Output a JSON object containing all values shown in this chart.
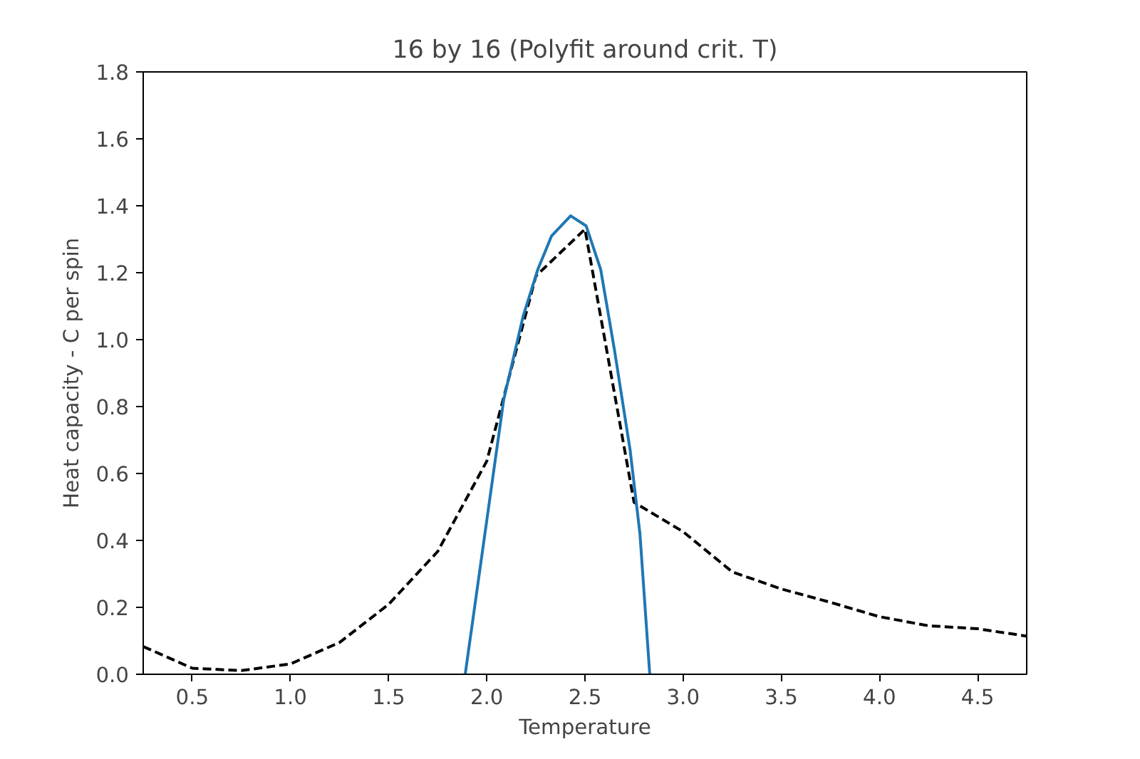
{
  "chart_data": {
    "type": "line",
    "title": "16 by 16 (Polyfit around crit. T)",
    "xlabel": "Temperature",
    "ylabel": "Heat capacity - C per spin",
    "xlim": [
      0.25,
      4.75
    ],
    "ylim": [
      0,
      1.8
    ],
    "xticks": [
      {
        "value": 0.5,
        "label": "0.5"
      },
      {
        "value": 1,
        "label": "1.0"
      },
      {
        "value": 1.5,
        "label": "1.5"
      },
      {
        "value": 2,
        "label": "2.0"
      },
      {
        "value": 2.5,
        "label": "2.5"
      },
      {
        "value": 3,
        "label": "3.0"
      },
      {
        "value": 3.5,
        "label": "3.5"
      },
      {
        "value": 4,
        "label": "4.0"
      },
      {
        "value": 4.5,
        "label": "4.5"
      }
    ],
    "yticks": [
      {
        "value": 0,
        "label": "0.0"
      },
      {
        "value": 0.2,
        "label": "0.2"
      },
      {
        "value": 0.4,
        "label": "0.4"
      },
      {
        "value": 0.6,
        "label": "0.6"
      },
      {
        "value": 0.8,
        "label": "0.8"
      },
      {
        "value": 1,
        "label": "1.0"
      },
      {
        "value": 1.2,
        "label": "1.2"
      },
      {
        "value": 1.4,
        "label": "1.4"
      },
      {
        "value": 1.6,
        "label": "1.6"
      },
      {
        "value": 1.8,
        "label": "1.8"
      }
    ],
    "grid": false,
    "series": [
      {
        "color": "#000000",
        "line_style": "dashed",
        "x": [
          0.25,
          0.5,
          0.75,
          1.0,
          1.25,
          1.5,
          1.75,
          2.0,
          2.25,
          2.5,
          2.75,
          3.0,
          3.25,
          3.5,
          3.75,
          4.0,
          4.25,
          4.5,
          4.75
        ],
        "values": [
          0.083,
          0.018,
          0.011,
          0.031,
          0.095,
          0.209,
          0.367,
          0.637,
          1.19,
          1.33,
          0.514,
          0.426,
          0.306,
          0.255,
          0.215,
          0.172,
          0.145,
          0.136,
          0.114
        ]
      },
      {
        "color": "#1f77b4",
        "line_style": "solid",
        "x": [
          1.89,
          2.0,
          2.086,
          2.185,
          2.26,
          2.33,
          2.427,
          2.506,
          2.58,
          2.65,
          2.73,
          2.78,
          2.83
        ],
        "values": [
          0,
          0.46,
          0.82,
          1.07,
          1.21,
          1.31,
          1.37,
          1.34,
          1.21,
          0.97,
          0.67,
          0.42,
          0
        ]
      }
    ]
  }
}
